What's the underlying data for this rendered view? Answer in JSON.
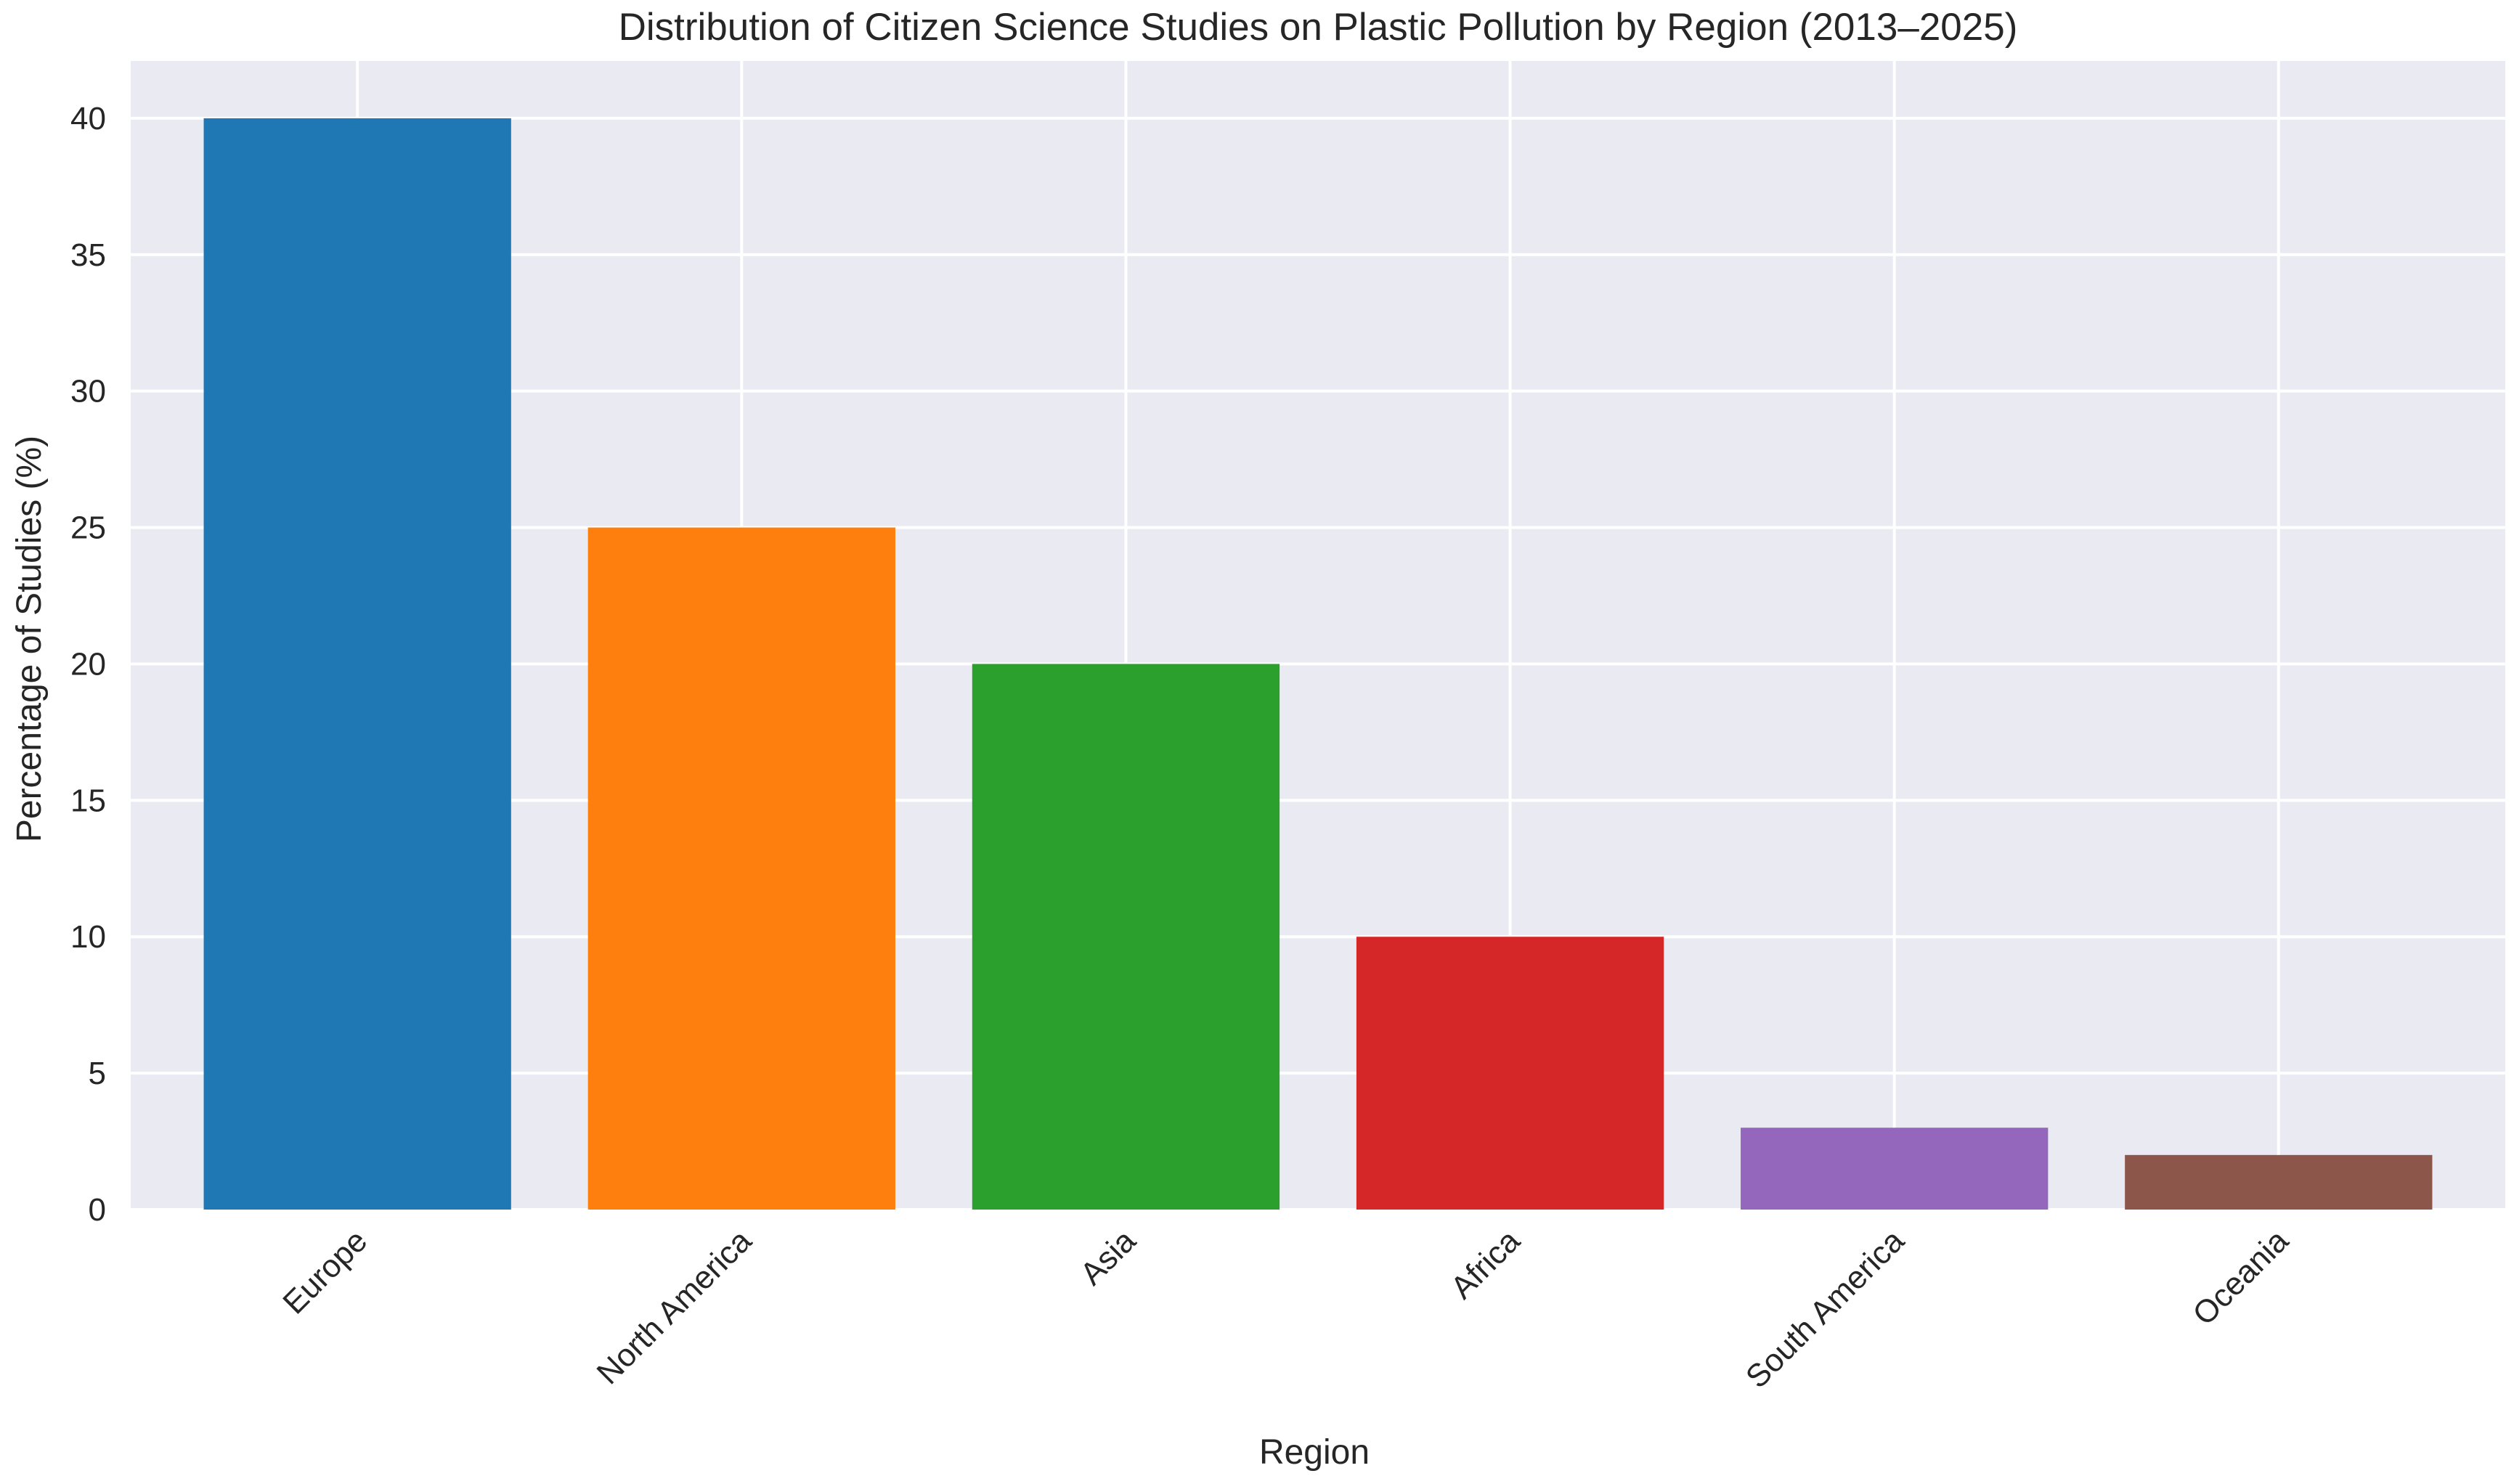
{
  "chart_data": {
    "type": "bar",
    "title": "Distribution of Citizen Science Studies on Plastic Pollution by Region (2013–2025)",
    "xlabel": "Region",
    "ylabel": "Percentage of Studies (%)",
    "categories": [
      "Europe",
      "North America",
      "Asia",
      "Africa",
      "South America",
      "Oceania"
    ],
    "values": [
      40,
      25,
      20,
      10,
      3,
      2
    ],
    "colors": [
      "#1f77b4",
      "#ff7f0e",
      "#2ca02c",
      "#d62728",
      "#9467bd",
      "#8c564b"
    ],
    "ylim": [
      0,
      42.1
    ],
    "yticks": [
      "0",
      "5",
      "10",
      "15",
      "20",
      "25",
      "30",
      "35",
      "40"
    ],
    "grid": true,
    "legend": "none",
    "background": "#eaeaf2",
    "grid_color": "#ffffff"
  }
}
